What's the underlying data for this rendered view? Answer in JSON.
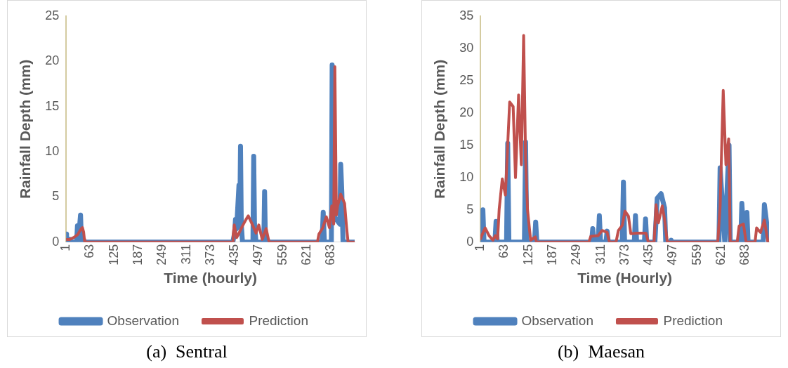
{
  "chart_data": [
    {
      "type": "line",
      "xlabel": "Time (hourly)",
      "ylabel": "Rainfall Depth (mm)",
      "annotations": [
        "(a)  Sentral"
      ],
      "xlim": [
        1,
        744
      ],
      "xticks": [
        1,
        63,
        125,
        187,
        249,
        311,
        373,
        435,
        497,
        559,
        621,
        683
      ],
      "ylim": [
        0,
        25
      ],
      "yticks": [
        0,
        5,
        10,
        15,
        20,
        25
      ],
      "grid": false,
      "legend": "bottom",
      "marker": "none",
      "line_style": "solid",
      "series": [
        {
          "name": "Observation",
          "color": "#4f81bd",
          "x": [
            1,
            2,
            10,
            11,
            12,
            28,
            30,
            32,
            36,
            38,
            40,
            41,
            430,
            435,
            437,
            440,
            446,
            448,
            450,
            452,
            455,
            482,
            484,
            486,
            490,
            510,
            512,
            514,
            520,
            660,
            663,
            666,
            684,
            686,
            688,
            706,
            708,
            711,
            714,
            744
          ],
          "values": [
            0.9,
            0,
            0.3,
            0,
            0,
            0,
            1.8,
            1.0,
            2.0,
            3.0,
            0.5,
            0,
            0,
            1.0,
            2.5,
            1.5,
            6.3,
            2.0,
            10.6,
            2.0,
            0,
            0,
            9.5,
            2.0,
            0,
            0,
            5.6,
            0.5,
            0,
            0,
            3.3,
            0,
            0,
            19.6,
            3.0,
            2.0,
            8.6,
            5.5,
            0,
            0
          ]
        },
        {
          "name": "Prediction",
          "color": "#c0504d",
          "x": [
            1,
            10,
            20,
            30,
            40,
            43,
            46,
            48,
            49,
            430,
            431,
            434,
            440,
            444,
            454,
            464,
            470,
            480,
            490,
            497,
            506,
            516,
            522,
            524,
            648,
            652,
            662,
            671,
            679,
            685,
            690,
            693,
            697,
            700,
            708,
            718,
            723,
            727,
            744
          ],
          "values": [
            0.3,
            0.3,
            0.5,
            0.8,
            1.5,
            1.6,
            1.1,
            0.3,
            0,
            0,
            0.8,
            1.9,
            0.5,
            0.8,
            1.7,
            2.5,
            2.9,
            2.0,
            1.0,
            1.9,
            0.3,
            1.5,
            0.3,
            0,
            0,
            0.9,
            1.6,
            2.8,
            1.6,
            4.0,
            2.0,
            19.4,
            3.0,
            4.0,
            5.3,
            4.3,
            1.7,
            0,
            0
          ]
        }
      ]
    },
    {
      "type": "line",
      "xlabel": "Time (Hourly)",
      "ylabel": "Rainfall Depth (mm)",
      "annotations": [
        "(b)  Maesan"
      ],
      "xlim": [
        1,
        744
      ],
      "xticks": [
        1,
        63,
        125,
        187,
        249,
        311,
        373,
        435,
        497,
        559,
        621,
        683
      ],
      "ylim": [
        0,
        35
      ],
      "yticks": [
        0,
        5,
        10,
        15,
        20,
        25,
        30,
        35
      ],
      "grid": false,
      "legend": "bottom",
      "marker": "none",
      "line_style": "solid",
      "series": [
        {
          "name": "Observation",
          "color": "#4f81bd",
          "x": [
            1,
            7,
            10,
            38,
            41,
            44,
            68,
            71,
            74,
            114,
            117,
            120,
            140,
            143,
            146,
            287,
            290,
            293,
            304,
            307,
            310,
            324,
            327,
            330,
            366,
            369,
            372,
            397,
            400,
            403,
            423,
            426,
            429,
            450,
            456,
            466,
            475,
            478,
            490,
            492,
            494,
            615,
            618,
            630,
            641,
            644,
            671,
            674,
            680,
            687,
            690,
            729,
            732,
            744
          ],
          "values": [
            0,
            5.0,
            0,
            0,
            3.2,
            0,
            0,
            15.3,
            0,
            0,
            15.5,
            0,
            0,
            3.1,
            0,
            0,
            2.1,
            0,
            0,
            4.1,
            0,
            0,
            1.7,
            0,
            0,
            9.3,
            0,
            0,
            4.1,
            0,
            0,
            3.6,
            0,
            0,
            6.8,
            7.5,
            5.3,
            0,
            0,
            0.3,
            0,
            0,
            11.5,
            0,
            15.0,
            0,
            0,
            6.0,
            0,
            4.6,
            0,
            0,
            5.8,
            0
          ]
        },
        {
          "name": "Prediction",
          "color": "#c0504d",
          "x": [
            1,
            4,
            13,
            23,
            33,
            39,
            45,
            49,
            57,
            65,
            76,
            85,
            91,
            99,
            106,
            112,
            117,
            122,
            130,
            142,
            145,
            280,
            285,
            304,
            314,
            327,
            333,
            350,
            356,
            366,
            373,
            382,
            388,
            404,
            420,
            427,
            433,
            448,
            453,
            459,
            469,
            475,
            482,
            612,
            618,
            626,
            633,
            640,
            644,
            662,
            667,
            678,
            685,
            708,
            712,
            722,
            732,
            741,
            744
          ],
          "values": [
            0.5,
            1.0,
            2.2,
            1.0,
            0.3,
            1.0,
            0.5,
            5.1,
            9.8,
            7.3,
            21.7,
            21.0,
            10,
            22.8,
            12,
            32.0,
            13,
            5.0,
            0.3,
            0.8,
            0,
            0,
            0.9,
            1.0,
            1.8,
            1.5,
            0,
            0,
            1.8,
            2.6,
            4.8,
            4.0,
            1.3,
            1.4,
            1.4,
            1.4,
            0,
            0,
            5.8,
            3.0,
            5.6,
            3.5,
            0,
            0,
            5.5,
            23.5,
            12,
            16.0,
            0,
            0,
            2.5,
            2.8,
            0,
            0,
            2.2,
            1.5,
            3.4,
            0,
            0
          ]
        }
      ]
    }
  ]
}
